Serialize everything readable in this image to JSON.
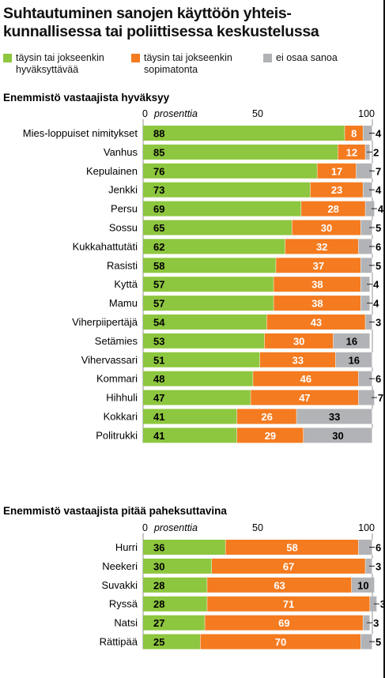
{
  "title_line1": "Suhtautuminen sanojen käyttöön yhteis-",
  "title_line2": "kunnallisessa tai poliittisessa keskustelussa",
  "legend": [
    {
      "label": "täysin tai jokseenkin hyväksyttävää",
      "color": "#8dc63f"
    },
    {
      "label": "täysin tai jokseenkin sopimatonta",
      "color": "#f47b20"
    },
    {
      "label": "ei osaa sanoa",
      "color": "#b1b3b6"
    }
  ],
  "chart_data": [
    {
      "type": "bar",
      "stacked": true,
      "orientation": "horizontal",
      "title": "Enemmistö vastaajista hyväksyy",
      "axis_unit_label": "prosenttia",
      "ticks": [
        "0",
        "50",
        "100"
      ],
      "xlim": [
        0,
        100
      ],
      "categories": [
        "Mies-loppuiset nimitykset",
        "Vanhus",
        "Kepulainen",
        "Jenkki",
        "Persu",
        "Sossu",
        "Kukkahattutäti",
        "Rasisti",
        "Kyttä",
        "Mamu",
        "Viherpiipertäjä",
        "Setämies",
        "Vihervassari",
        "Kommari",
        "Hihhuli",
        "Kokkari",
        "Politrukki"
      ],
      "series": [
        {
          "name": "täysin tai jokseenkin hyväksyttävää",
          "values": [
            88,
            85,
            76,
            73,
            69,
            65,
            62,
            58,
            57,
            57,
            54,
            53,
            51,
            48,
            47,
            41,
            41
          ]
        },
        {
          "name": "täysin tai jokseenkin sopimatonta",
          "values": [
            8,
            12,
            17,
            23,
            28,
            30,
            32,
            37,
            38,
            38,
            43,
            30,
            33,
            46,
            47,
            26,
            29
          ]
        },
        {
          "name": "ei osaa sanoa",
          "values": [
            4,
            2,
            7,
            4,
            4,
            5,
            6,
            5,
            4,
            4,
            3,
            16,
            16,
            6,
            7,
            33,
            30
          ]
        }
      ]
    },
    {
      "type": "bar",
      "stacked": true,
      "orientation": "horizontal",
      "title": "Enemmistö vastaajista pitää paheksuttavina",
      "axis_unit_label": "prosenttia",
      "ticks": [
        "0",
        "50",
        "100"
      ],
      "xlim": [
        0,
        100
      ],
      "categories": [
        "Hurri",
        "Neekeri",
        "Suvakki",
        "Ryssä",
        "Natsi",
        "Rättipää"
      ],
      "series": [
        {
          "name": "täysin tai jokseenkin hyväksyttävää",
          "values": [
            36,
            30,
            28,
            28,
            27,
            25
          ]
        },
        {
          "name": "täysin tai jokseenkin sopimatonta",
          "values": [
            58,
            67,
            63,
            71,
            69,
            70
          ]
        },
        {
          "name": "ei osaa sanoa",
          "values": [
            6,
            3,
            10,
            3,
            3,
            5
          ]
        }
      ]
    }
  ]
}
